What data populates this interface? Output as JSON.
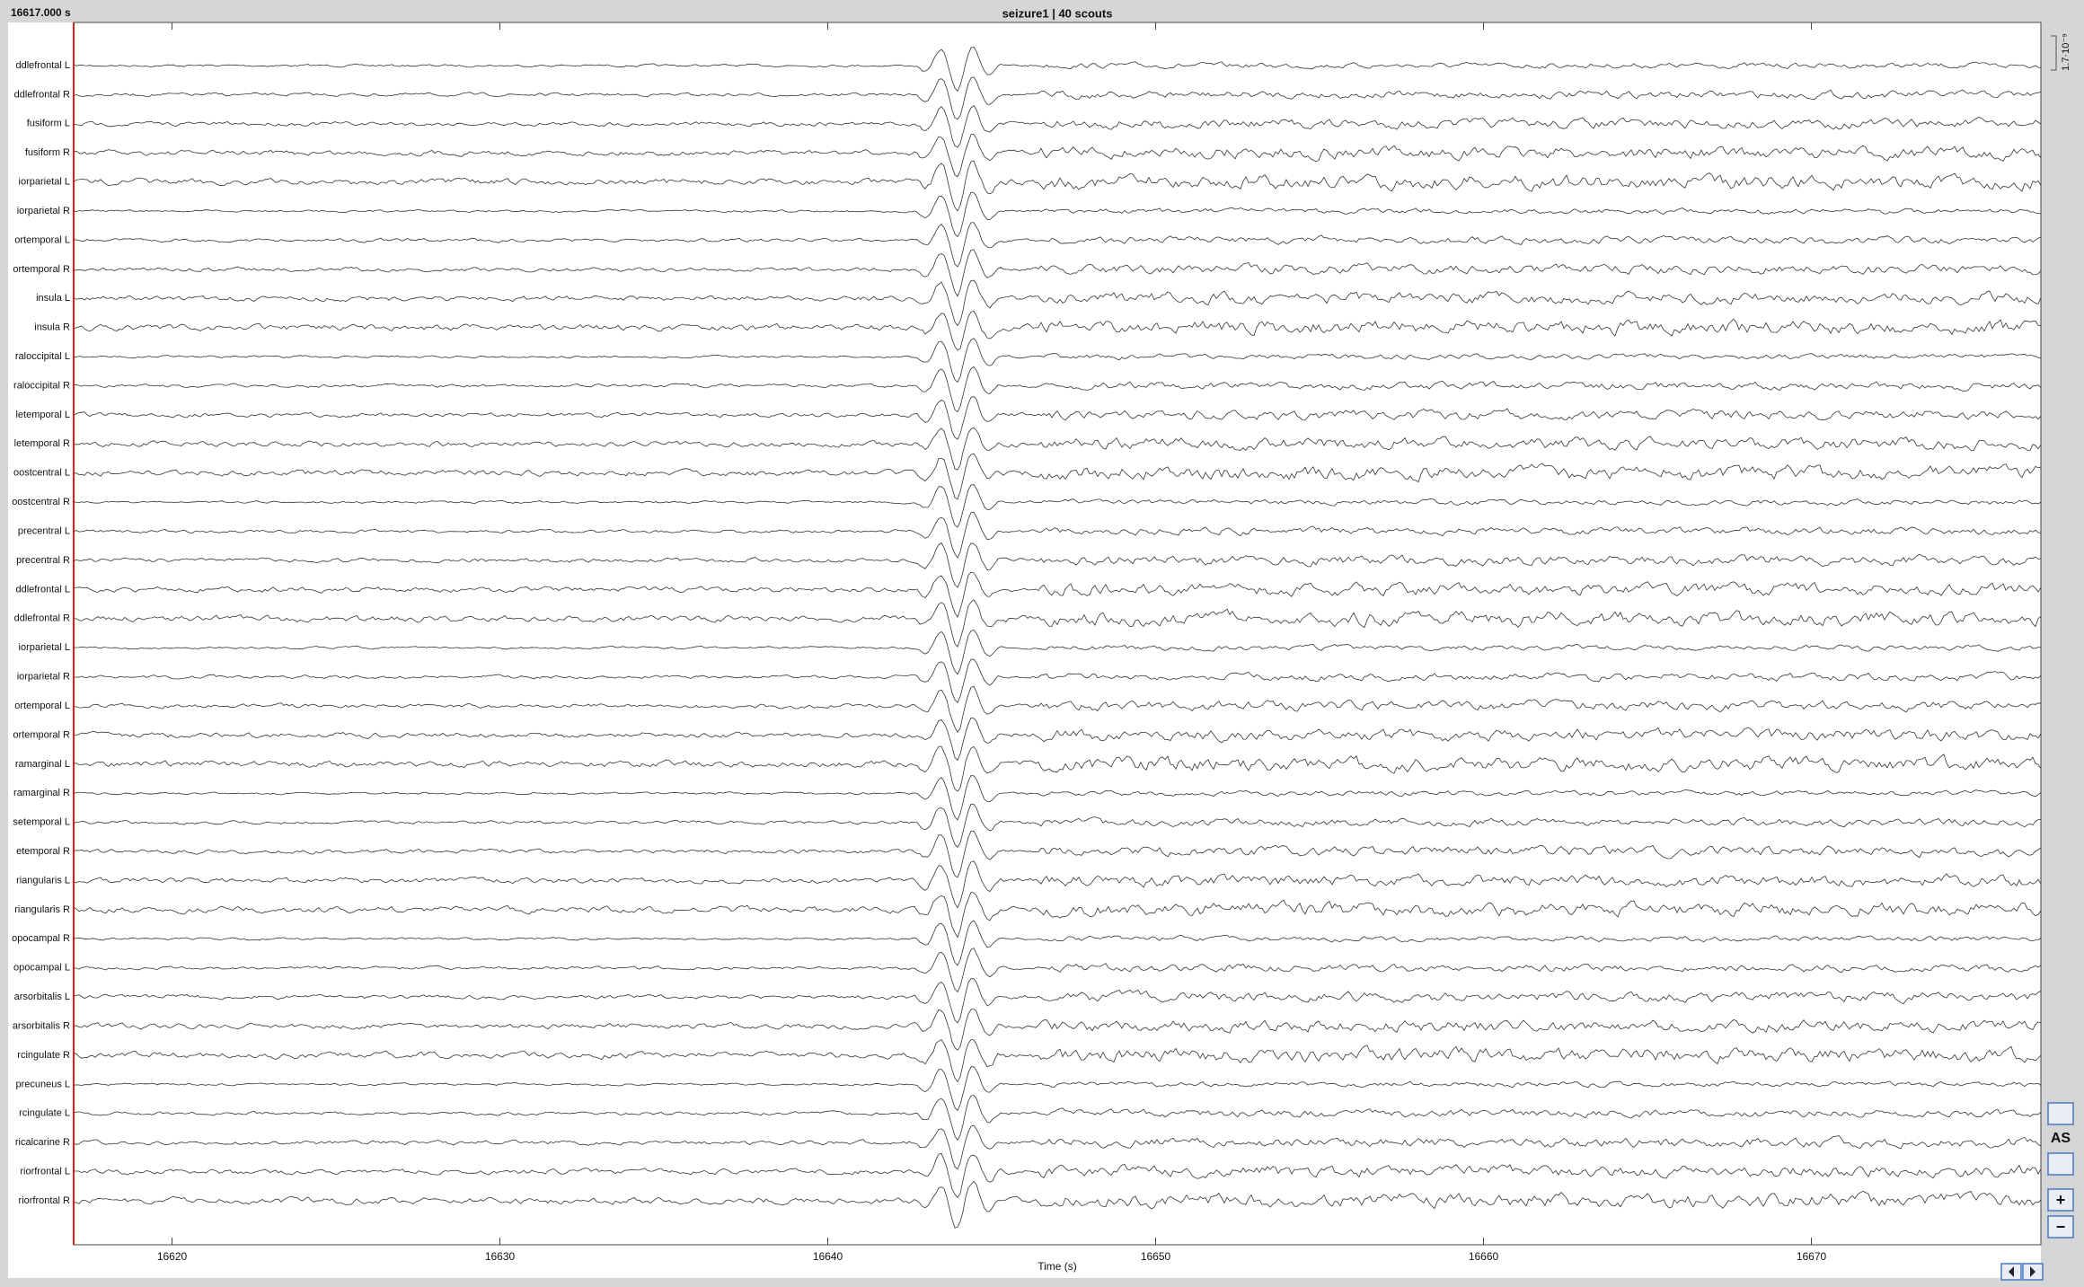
{
  "header": {
    "time": "16617.000 s",
    "title": "seizure1 | 40 scouts",
    "scale": "1.7·10⁻⁹"
  },
  "chart": {
    "xlabel": "Time (s)",
    "xlim": [
      16617,
      16677
    ],
    "xticks": [
      16620,
      16630,
      16640,
      16650,
      16660,
      16670
    ],
    "channels": [
      "ddlefrontal L",
      "ddlefrontal R",
      "fusiform L",
      "fusiform R",
      "iorparietal L",
      "iorparietal R",
      "ortemporal L",
      "ortemporal R",
      "insula L",
      "insula R",
      "raloccipital L",
      "raloccipital R",
      "letemporal L",
      "letemporal R",
      "oostcentral L",
      "oostcentral R",
      "precentral L",
      "precentral R",
      "ddlefrontal L",
      "ddlefrontal R",
      "iorparietal L",
      "iorparietal R",
      "ortemporal L",
      "ortemporal R",
      "ramarginal L",
      "ramarginal R",
      "setemporal L",
      "etemporal R",
      "riangularis L",
      "riangularis R",
      "opocampal R",
      "opocampal L",
      "arsorbitalis L",
      "arsorbitalis R",
      "rcingulate R",
      "precuneus L",
      "rcingulate L",
      "ricalcarine R",
      "riorfrontal L",
      "riorfrontal R"
    ]
  },
  "buttons": [
    "AS",
    "+",
    "−"
  ]
}
